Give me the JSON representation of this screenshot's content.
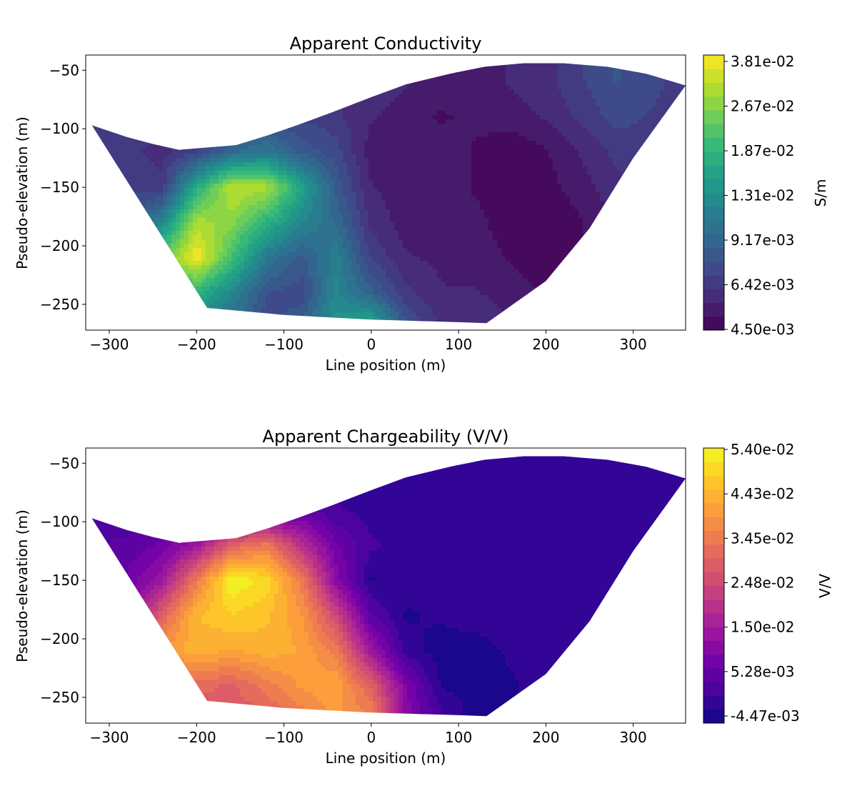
{
  "chart_data": [
    {
      "type": "heatmap",
      "subtype": "filled-contour pseudo-section",
      "title": "Apparent Conductivity",
      "xlabel": "Line position (m)",
      "ylabel": "Pseudo-elevation (m)",
      "colorbar_label": "S/m",
      "colormap": "viridis",
      "xlim": [
        -327,
        360
      ],
      "ylim": [
        -272,
        -37
      ],
      "xticks": [
        -300,
        -200,
        -100,
        0,
        100,
        200,
        300
      ],
      "xtick_labels": [
        "−300",
        "−200",
        "−100",
        "0",
        "100",
        "200",
        "300"
      ],
      "yticks": [
        -50,
        -100,
        -150,
        -200,
        -250
      ],
      "ytick_labels": [
        "−50",
        "−100",
        "−150",
        "−200",
        "−250"
      ],
      "colorbar_range": [
        0.0045,
        0.0381
      ],
      "colorbar_tick_labels": [
        "4.50e-03",
        "6.42e-03",
        "9.17e-03",
        "1.31e-02",
        "1.87e-02",
        "2.67e-02",
        "3.81e-02"
      ],
      "boundary": [
        [
          -320,
          -97
        ],
        [
          -280,
          -107
        ],
        [
          -250,
          -113
        ],
        [
          -220,
          -118
        ],
        [
          -155,
          -114
        ],
        [
          -120,
          -106
        ],
        [
          -85,
          -97
        ],
        [
          -45,
          -86
        ],
        [
          0,
          -73
        ],
        [
          40,
          -62
        ],
        [
          90,
          -53
        ],
        [
          130,
          -47
        ],
        [
          175,
          -44
        ],
        [
          220,
          -44
        ],
        [
          270,
          -47
        ],
        [
          315,
          -53
        ],
        [
          360,
          -63
        ],
        [
          300,
          -125
        ],
        [
          250,
          -185
        ],
        [
          200,
          -230
        ],
        [
          132,
          -266
        ],
        [
          90,
          -265
        ],
        [
          0,
          -263
        ],
        [
          -100,
          -259
        ],
        [
          -188,
          -253
        ]
      ],
      "grid_x": [
        -320,
        -280,
        -240,
        -200,
        -160,
        -120,
        -80,
        -40,
        0,
        40,
        80,
        120,
        160,
        200,
        240,
        280,
        320,
        360
      ],
      "grid_y": [
        -60,
        -90,
        -120,
        -150,
        -180,
        -210,
        -240,
        -265
      ],
      "values": [
        [
          0.011,
          0.011,
          0.01,
          0.01,
          0.01,
          0.01,
          0.009,
          0.009,
          0.009,
          0.008,
          0.007,
          0.007,
          0.008,
          0.009,
          0.011,
          0.013,
          0.012,
          0.01
        ],
        [
          0.011,
          0.011,
          0.01,
          0.01,
          0.011,
          0.012,
          0.011,
          0.01,
          0.008,
          0.007,
          0.006,
          0.0065,
          0.007,
          0.008,
          0.01,
          0.012,
          0.011,
          0.01
        ],
        [
          0.011,
          0.01,
          0.009,
          0.011,
          0.016,
          0.018,
          0.014,
          0.012,
          0.007,
          0.0065,
          0.007,
          0.006,
          0.005,
          0.006,
          0.008,
          0.01,
          0.01,
          0.01
        ],
        [
          0.012,
          0.011,
          0.01,
          0.025,
          0.035,
          0.034,
          0.024,
          0.014,
          0.008,
          0.007,
          0.007,
          0.006,
          0.0055,
          0.0055,
          0.007,
          0.009,
          0.01,
          0.01
        ],
        [
          0.013,
          0.012,
          0.02,
          0.034,
          0.032,
          0.026,
          0.02,
          0.016,
          0.009,
          0.007,
          0.007,
          0.0065,
          0.0055,
          0.0047,
          0.006,
          0.008,
          0.01,
          0.01
        ],
        [
          0.014,
          0.015,
          0.03,
          0.038,
          0.028,
          0.018,
          0.014,
          0.019,
          0.011,
          0.008,
          0.0075,
          0.007,
          0.006,
          0.005,
          0.006,
          0.008,
          0.01,
          0.01
        ],
        [
          0.014,
          0.016,
          0.024,
          0.026,
          0.02,
          0.013,
          0.012,
          0.02,
          0.015,
          0.01,
          0.008,
          0.008,
          0.007,
          0.006,
          0.006,
          0.008,
          0.01,
          0.01
        ],
        [
          0.014,
          0.016,
          0.02,
          0.02,
          0.017,
          0.012,
          0.014,
          0.022,
          0.024,
          0.013,
          0.009,
          0.009,
          0.008,
          0.007,
          0.007,
          0.008,
          0.01,
          0.01
        ]
      ]
    },
    {
      "type": "heatmap",
      "subtype": "filled-contour pseudo-section",
      "title": "Apparent Chargeability (V/V)",
      "xlabel": "Line position (m)",
      "ylabel": "Pseudo-elevation (m)",
      "colorbar_label": "V/V",
      "colormap": "plasma",
      "xlim": [
        -327,
        360
      ],
      "ylim": [
        -272,
        -37
      ],
      "xticks": [
        -300,
        -200,
        -100,
        0,
        100,
        200,
        300
      ],
      "xtick_labels": [
        "−300",
        "−200",
        "−100",
        "0",
        "100",
        "200",
        "300"
      ],
      "yticks": [
        -50,
        -100,
        -150,
        -200,
        -250
      ],
      "ytick_labels": [
        "−50",
        "−100",
        "−150",
        "−200",
        "−250"
      ],
      "colorbar_range": [
        -0.00447,
        0.054
      ],
      "colorbar_tick_labels": [
        "-4.47e-03",
        "5.28e-03",
        "1.50e-02",
        "2.48e-02",
        "3.45e-02",
        "4.43e-02",
        "5.40e-02"
      ],
      "boundary": [
        [
          -320,
          -97
        ],
        [
          -280,
          -107
        ],
        [
          -250,
          -113
        ],
        [
          -220,
          -118
        ],
        [
          -155,
          -114
        ],
        [
          -120,
          -106
        ],
        [
          -85,
          -97
        ],
        [
          -45,
          -86
        ],
        [
          0,
          -73
        ],
        [
          40,
          -62
        ],
        [
          90,
          -53
        ],
        [
          130,
          -47
        ],
        [
          175,
          -44
        ],
        [
          220,
          -44
        ],
        [
          270,
          -47
        ],
        [
          315,
          -53
        ],
        [
          360,
          -63
        ],
        [
          300,
          -125
        ],
        [
          250,
          -185
        ],
        [
          200,
          -230
        ],
        [
          132,
          -266
        ],
        [
          90,
          -265
        ],
        [
          0,
          -263
        ],
        [
          -100,
          -259
        ],
        [
          -188,
          -253
        ]
      ],
      "grid_x": [
        -320,
        -280,
        -240,
        -200,
        -160,
        -120,
        -80,
        -40,
        0,
        40,
        80,
        120,
        160,
        200,
        240,
        280,
        320,
        360
      ],
      "grid_y": [
        -60,
        -90,
        -120,
        -150,
        -180,
        -210,
        -240,
        -265
      ],
      "values": [
        [
          0.0,
          0.0,
          0.0,
          0.0,
          0.0,
          0.0,
          0.0,
          0.0,
          0.0,
          0.0,
          0.0,
          0.0,
          0.0,
          0.0,
          0.0,
          0.0,
          0.0,
          0.0
        ],
        [
          0.003,
          0.002,
          0.001,
          0.001,
          0.002,
          0.004,
          0.006,
          0.002,
          0.0,
          0.0,
          0.0,
          0.0,
          0.0,
          0.0,
          0.0,
          0.0,
          0.0,
          0.0
        ],
        [
          0.004,
          0.005,
          0.008,
          0.015,
          0.03,
          0.035,
          0.02,
          0.008,
          0.002,
          0.0,
          0.0,
          0.0,
          0.0,
          0.0,
          0.0,
          0.0,
          0.0,
          0.0
        ],
        [
          0.005,
          0.008,
          0.015,
          0.035,
          0.054,
          0.05,
          0.035,
          0.012,
          -0.002,
          0.0,
          0.0,
          0.0,
          0.0,
          0.0,
          0.0,
          0.0,
          0.0,
          0.0
        ],
        [
          0.006,
          0.01,
          0.03,
          0.045,
          0.048,
          0.046,
          0.04,
          0.025,
          0.005,
          -0.002,
          -0.001,
          0.0,
          0.0,
          0.0,
          0.0,
          0.0,
          0.0,
          0.0
        ],
        [
          0.007,
          0.012,
          0.04,
          0.044,
          0.042,
          0.044,
          0.042,
          0.035,
          0.015,
          0.0,
          -0.003,
          -0.003,
          -0.001,
          0.0,
          0.0,
          0.0,
          0.0,
          0.0
        ],
        [
          0.008,
          0.014,
          0.03,
          0.032,
          0.03,
          0.035,
          0.04,
          0.042,
          0.03,
          0.01,
          -0.002,
          -0.003,
          -0.002,
          0.0,
          0.0,
          0.0,
          0.0,
          0.0
        ],
        [
          0.008,
          0.014,
          0.025,
          0.028,
          0.028,
          0.03,
          0.035,
          0.04,
          0.036,
          0.012,
          0.002,
          -0.003,
          -0.002,
          0.0,
          0.0,
          0.0,
          0.0,
          0.0
        ]
      ]
    }
  ]
}
